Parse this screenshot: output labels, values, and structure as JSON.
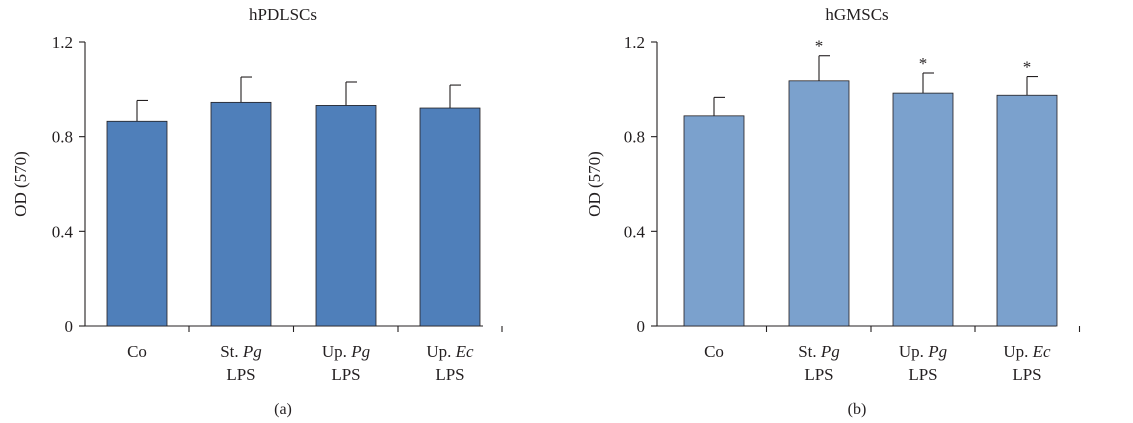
{
  "colors": {
    "panel_a_bar": "#4f7fba",
    "panel_b_bar": "#7ba1cd",
    "bar_edge": "#231f20",
    "axis": "#231f20"
  },
  "chart_data": [
    {
      "type": "bar",
      "panel_label": "(a)",
      "title": "hPDLSCs",
      "ylabel": "OD (570)",
      "ylim": [
        0,
        1.2
      ],
      "yticks": [
        "0",
        "0.4",
        "0.8",
        "1.2"
      ],
      "categories": [
        {
          "line1": [
            "Co"
          ],
          "line2": ""
        },
        {
          "line1": [
            "St. ",
            "Pg"
          ],
          "line2": "LPS"
        },
        {
          "line1": [
            "Up. ",
            "Pg"
          ],
          "line2": "LPS"
        },
        {
          "line1": [
            "Up. ",
            "Ec"
          ],
          "line2": "LPS"
        }
      ],
      "values": [
        0.865,
        0.945,
        0.932,
        0.921
      ],
      "errors": [
        0.088,
        0.107,
        0.099,
        0.097
      ],
      "significance": [
        "",
        "",
        "",
        ""
      ],
      "grid": false,
      "legend": "none"
    },
    {
      "type": "bar",
      "panel_label": "(b)",
      "title": "hGMSCs",
      "ylabel": "OD (570)",
      "ylim": [
        0,
        1.2
      ],
      "yticks": [
        "0",
        "0.4",
        "0.8",
        "1.2"
      ],
      "categories": [
        {
          "line1": [
            "Co"
          ],
          "line2": ""
        },
        {
          "line1": [
            "St. ",
            "Pg"
          ],
          "line2": "LPS"
        },
        {
          "line1": [
            "Up. ",
            "Pg"
          ],
          "line2": "LPS"
        },
        {
          "line1": [
            "Up. ",
            "Ec"
          ],
          "line2": "LPS"
        }
      ],
      "values": [
        0.888,
        1.036,
        0.984,
        0.975
      ],
      "errors": [
        0.078,
        0.106,
        0.085,
        0.079
      ],
      "significance": [
        "",
        "*",
        "*",
        "*"
      ],
      "grid": false,
      "legend": "none"
    }
  ]
}
